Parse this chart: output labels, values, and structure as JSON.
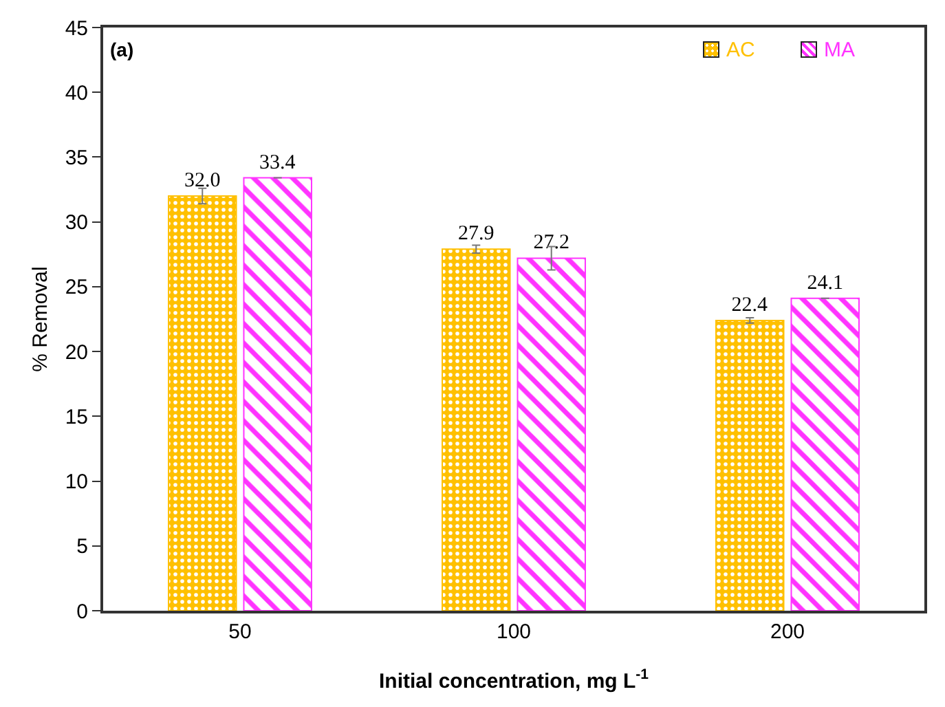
{
  "chart_data": {
    "type": "bar",
    "xlabel": "Initial concentration, mg L$^{-1}$",
    "ylabel": "% Removal",
    "annotations": [
      "(a)"
    ],
    "categories": [
      "50",
      "100",
      "200"
    ],
    "series": [
      {
        "name": "AC",
        "color": "#ffc000",
        "values": [
          32.0,
          27.9,
          22.4
        ],
        "value_labels": [
          "32.0",
          "27.9",
          "22.4"
        ],
        "errors": [
          0.6,
          0.3,
          0.2
        ]
      },
      {
        "name": "MA",
        "color": "#ff33ff",
        "values": [
          33.4,
          27.2,
          24.1
        ],
        "value_labels": [
          "33.4",
          "27.2",
          "24.1"
        ],
        "errors": [
          null,
          0.9,
          null
        ]
      }
    ],
    "ylim": [
      0,
      45
    ],
    "yticks": [
      0,
      5,
      10,
      15,
      20,
      25,
      30,
      35,
      40,
      45
    ],
    "grid": false,
    "legend": "top right"
  }
}
